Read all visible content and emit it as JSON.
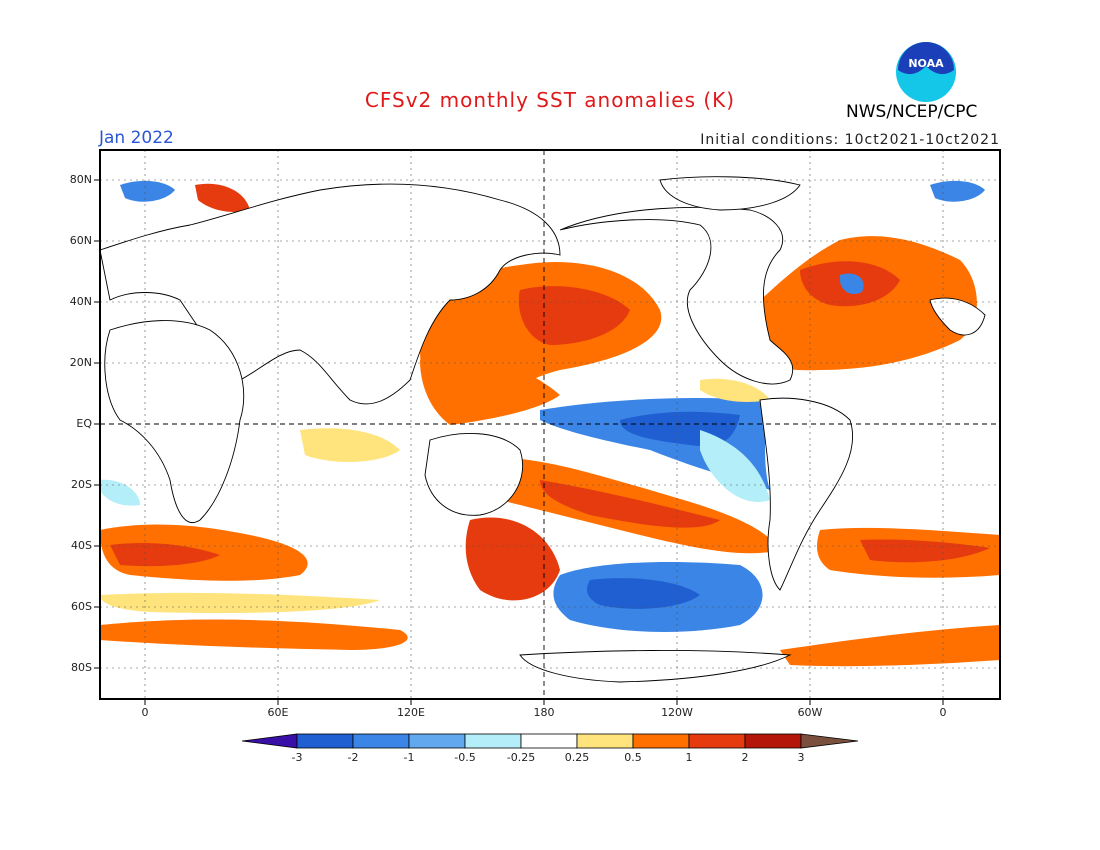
{
  "header": {
    "title": "CFSv2 monthly SST anomalies (K)",
    "month": "Jan 2022",
    "initial_conditions": "Initial conditions: 10ct2021-10ct2021",
    "agency": "NWS/NCEP/CPC",
    "logo_text": "NOAA"
  },
  "axes": {
    "lat_labels": [
      "80N",
      "60N",
      "40N",
      "20N",
      "EQ",
      "20S",
      "40S",
      "60S",
      "80S"
    ],
    "lon_labels": [
      "0",
      "60E",
      "120E",
      "180",
      "120W",
      "60W",
      "0"
    ]
  },
  "colorbar": {
    "labels": [
      "-3",
      "-2",
      "-1",
      "-0.5",
      "-0.25",
      "0.25",
      "0.5",
      "1",
      "2",
      "3"
    ],
    "colors": [
      "#3a0fa8",
      "#1f5fd1",
      "#3a85e6",
      "#62a8ee",
      "#b4eef8",
      "#ffffff",
      "#ffe47d",
      "#ff7000",
      "#e63b0f",
      "#b5160a",
      "#7a4f3d"
    ]
  }
}
